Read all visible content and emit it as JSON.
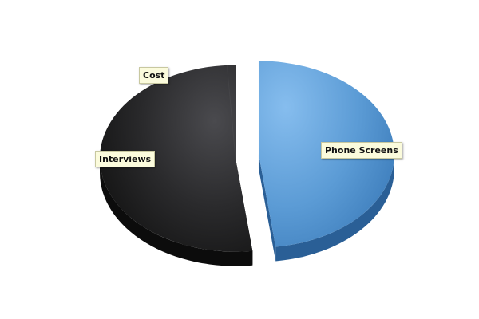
{
  "chart_data": {
    "type": "pie",
    "style": "3d-exploded",
    "title": "",
    "categories": [
      "Phone Screens",
      "Interviews",
      "Cost"
    ],
    "values": [
      48,
      50,
      2
    ],
    "unit": "percent (estimated share)",
    "colors": {
      "Phone Screens": "#5b9bd5",
      "Interviews": "#262626",
      "Cost": "#262626"
    },
    "legend": "none",
    "data_labels": true
  }
}
